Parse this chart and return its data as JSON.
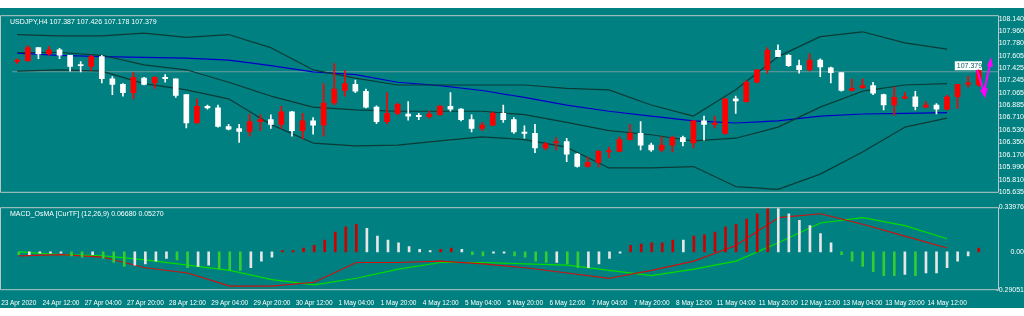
{
  "chart_data": [
    {
      "type": "candlestick",
      "title": "USDJPY,H4 107.387 107.426 107.178 107.379",
      "categories": [
        "23 Apr 2020",
        null,
        null,
        null,
        "24 Apr 12:00",
        null,
        null,
        null,
        "27 Apr 04:00",
        null,
        null,
        null,
        "27 Apr 20:00",
        null,
        null,
        null,
        "28 Apr 12:00",
        null,
        null,
        null,
        "29 Apr 04:00",
        null,
        null,
        null,
        "29 Apr 20:00",
        null,
        null,
        null,
        "30 Apr 12:00",
        null,
        null,
        null,
        "1 May 04:00",
        null,
        null,
        null,
        "1 May 20:00",
        null,
        null,
        null,
        "4 May 12:00",
        null,
        null,
        null,
        "5 May 04:00",
        null,
        null,
        null,
        "5 May 20:00",
        null,
        null,
        null,
        "6 May 12:00",
        null,
        null,
        null,
        "7 May 04:00",
        null,
        null,
        null,
        "7 May 20:00",
        null,
        null,
        null,
        "8 May 12:00",
        null,
        null,
        null,
        "11 May 04:00",
        null,
        null,
        null,
        "11 May 20:00",
        null,
        null,
        null,
        "12 May 12:00",
        null,
        null,
        null,
        "13 May 04:00",
        null,
        null,
        null,
        "13 May 20:00",
        null,
        null,
        null,
        "14 May 12:00",
        null,
        null,
        null
      ],
      "ohlc": [
        [
          107.52,
          107.56,
          107.49,
          107.54
        ],
        [
          107.53,
          107.75,
          107.53,
          107.72
        ],
        [
          107.72,
          107.72,
          107.56,
          107.63
        ],
        [
          107.63,
          107.74,
          107.61,
          107.69
        ],
        [
          107.69,
          107.71,
          107.56,
          107.61
        ],
        [
          107.61,
          107.61,
          107.38,
          107.45
        ],
        [
          107.47,
          107.52,
          107.37,
          107.46
        ],
        [
          107.45,
          107.61,
          107.39,
          107.59
        ],
        [
          107.59,
          107.61,
          107.21,
          107.27
        ],
        [
          107.27,
          107.3,
          107.04,
          107.19
        ],
        [
          107.19,
          107.2,
          107.02,
          107.07
        ],
        [
          107.07,
          107.36,
          106.98,
          107.29
        ],
        [
          107.28,
          107.29,
          107.18,
          107.19
        ],
        [
          107.21,
          107.3,
          107.13,
          107.29
        ],
        [
          107.29,
          107.33,
          107.22,
          107.27
        ],
        [
          107.27,
          107.27,
          107.0,
          107.03
        ],
        [
          107.04,
          107.04,
          106.56,
          106.63
        ],
        [
          106.63,
          106.98,
          106.63,
          106.87
        ],
        [
          106.87,
          106.89,
          106.83,
          106.85
        ],
        [
          106.85,
          106.89,
          106.57,
          106.58
        ],
        [
          106.58,
          106.61,
          106.53,
          106.54
        ],
        [
          106.55,
          106.61,
          106.35,
          106.51
        ],
        [
          106.51,
          106.76,
          106.44,
          106.65
        ],
        [
          106.65,
          106.75,
          106.52,
          106.68
        ],
        [
          106.68,
          106.75,
          106.55,
          106.61
        ],
        [
          106.61,
          106.87,
          106.55,
          106.79
        ],
        [
          106.79,
          106.8,
          106.44,
          106.52
        ],
        [
          106.52,
          106.77,
          106.4,
          106.66
        ],
        [
          106.66,
          106.71,
          106.47,
          106.6
        ],
        [
          106.6,
          107.2,
          106.44,
          106.92
        ],
        [
          106.92,
          107.49,
          106.89,
          107.12
        ],
        [
          107.1,
          107.39,
          107.02,
          107.2
        ],
        [
          107.19,
          107.25,
          107.07,
          107.09
        ],
        [
          107.09,
          107.12,
          106.85,
          106.86
        ],
        [
          106.86,
          106.88,
          106.62,
          106.65
        ],
        [
          106.65,
          107.07,
          106.62,
          106.77
        ],
        [
          106.77,
          106.92,
          106.75,
          106.9
        ],
        [
          106.76,
          106.94,
          106.67,
          106.73
        ],
        [
          106.74,
          106.77,
          106.68,
          106.72
        ],
        [
          106.72,
          106.8,
          106.7,
          106.76
        ],
        [
          106.75,
          106.89,
          106.74,
          106.87
        ],
        [
          106.87,
          107.07,
          106.8,
          106.83
        ],
        [
          106.83,
          106.84,
          106.66,
          106.68
        ],
        [
          106.68,
          106.75,
          106.5,
          106.55
        ],
        [
          106.55,
          106.64,
          106.52,
          106.6
        ],
        [
          106.6,
          106.79,
          106.59,
          106.77
        ],
        [
          106.77,
          106.89,
          106.64,
          106.68
        ],
        [
          106.68,
          106.71,
          106.48,
          106.5
        ],
        [
          106.5,
          106.59,
          106.41,
          106.48
        ],
        [
          106.48,
          106.61,
          106.2,
          106.27
        ],
        [
          106.27,
          106.35,
          106.24,
          106.33
        ],
        [
          106.34,
          106.42,
          106.24,
          106.36
        ],
        [
          106.36,
          106.41,
          106.07,
          106.18
        ],
        [
          106.18,
          106.19,
          105.99,
          106.0
        ],
        [
          106.0,
          106.14,
          105.99,
          106.06
        ],
        [
          106.06,
          106.24,
          105.99,
          106.22
        ],
        [
          106.21,
          106.28,
          106.13,
          106.23
        ],
        [
          106.22,
          106.43,
          106.21,
          106.39
        ],
        [
          106.39,
          106.61,
          106.38,
          106.48
        ],
        [
          106.48,
          106.65,
          106.24,
          106.31
        ],
        [
          106.31,
          106.34,
          106.22,
          106.24
        ],
        [
          106.24,
          106.43,
          106.21,
          106.31
        ],
        [
          106.31,
          106.44,
          106.21,
          106.42
        ],
        [
          106.42,
          106.44,
          106.3,
          106.36
        ],
        [
          106.34,
          106.66,
          106.27,
          106.66
        ],
        [
          106.66,
          106.73,
          106.38,
          106.61
        ],
        [
          106.61,
          106.73,
          106.56,
          106.63
        ],
        [
          106.48,
          106.98,
          106.47,
          106.98
        ],
        [
          106.98,
          107.02,
          106.77,
          106.95
        ],
        [
          106.94,
          107.25,
          106.93,
          107.22
        ],
        [
          107.22,
          107.4,
          107.21,
          107.4
        ],
        [
          107.4,
          107.72,
          107.35,
          107.68
        ],
        [
          107.68,
          107.76,
          107.59,
          107.59
        ],
        [
          107.61,
          107.62,
          107.45,
          107.46
        ],
        [
          107.46,
          107.54,
          107.35,
          107.4
        ],
        [
          107.4,
          107.63,
          107.38,
          107.54
        ],
        [
          107.54,
          107.56,
          107.3,
          107.44
        ],
        [
          107.43,
          107.44,
          107.21,
          107.36
        ],
        [
          107.36,
          107.36,
          107.09,
          107.1
        ],
        [
          107.1,
          107.27,
          107.09,
          107.13
        ],
        [
          107.14,
          107.27,
          107.13,
          107.17
        ],
        [
          107.17,
          107.22,
          107.04,
          107.06
        ],
        [
          107.04,
          107.05,
          106.82,
          106.89
        ],
        [
          106.89,
          107.15,
          106.74,
          107.0
        ],
        [
          106.99,
          107.07,
          106.98,
          107.01
        ],
        [
          107.01,
          107.09,
          106.82,
          106.87
        ],
        [
          106.86,
          106.94,
          106.85,
          106.89
        ],
        [
          106.89,
          106.91,
          106.76,
          106.83
        ],
        [
          106.83,
          107.03,
          106.82,
          107.01
        ],
        [
          107.01,
          107.19,
          106.84,
          107.19
        ],
        [
          107.19,
          107.31,
          107.15,
          107.21
        ],
        [
          107.18,
          107.4,
          107.16,
          107.39
        ]
      ],
      "colors": [
        "#ff0000",
        "#ff0000",
        "#ffffff",
        "#ff0000",
        "#ffffff",
        "#ffffff",
        "#ffffff",
        "#ff0000",
        "#ffffff",
        "#ffffff",
        "#ffffff",
        "#ff0000",
        "#ffffff",
        "#ff0000",
        "#ffffff",
        "#ffffff",
        "#ffffff",
        "#ff0000",
        "#ffffff",
        "#ffffff",
        "#ffffff",
        "#ffffff",
        "#ff0000",
        "#ff0000",
        "#ffffff",
        "#ff0000",
        "#ffffff",
        "#ff0000",
        "#ffffff",
        "#ff0000",
        "#ff0000",
        "#ff0000",
        "#ffffff",
        "#ffffff",
        "#ffffff",
        "#ff0000",
        "#ff0000",
        "#ffffff",
        "#ffffff",
        "#ff0000",
        "#ff0000",
        "#ffffff",
        "#ffffff",
        "#ffffff",
        "#ff0000",
        "#ff0000",
        "#ffffff",
        "#ffffff",
        "#ffffff",
        "#ffffff",
        "#ff0000",
        "#ff0000",
        "#ffffff",
        "#ffffff",
        "#ff0000",
        "#ff0000",
        "#ff0000",
        "#ff0000",
        "#ff0000",
        "#ffffff",
        "#ffffff",
        "#ff0000",
        "#ff0000",
        "#ffffff",
        "#ff0000",
        "#ffffff",
        "#ff0000",
        "#ff0000",
        "#ffffff",
        "#ff0000",
        "#ff0000",
        "#ff0000",
        "#ffffff",
        "#ffffff",
        "#ffffff",
        "#ff0000",
        "#ffffff",
        "#ffffff",
        "#ffffff",
        "#ff0000",
        "#ff0000",
        "#ffffff",
        "#ffffff",
        "#ff0000",
        "#ff0000",
        "#ffffff",
        "#ff0000",
        "#ffffff",
        "#ff0000",
        "#ff0000",
        "#ff0000",
        "#ff0000"
      ],
      "series": [
        {
          "type": "line",
          "color": "#0b3b36",
          "x": [
            "23 Apr 2020",
            "24 Apr 12:00",
            "27 Apr 04:00",
            "27 Apr 20:00",
            "28 Apr 12:00",
            "29 Apr 04:00",
            "29 Apr 20:00",
            "30 Apr 12:00",
            "1 May 04:00",
            "1 May 20:00",
            "4 May 12:00",
            "5 May 04:00",
            "5 May 20:00",
            "6 May 12:00",
            "7 May 04:00",
            "7 May 20:00",
            "8 May 12:00",
            "11 May 04:00",
            "11 May 20:00",
            "12 May 12:00",
            "13 May 04:00",
            "13 May 20:00",
            "14 May 12:00"
          ],
          "values": [
            107.91,
            107.89,
            107.89,
            107.93,
            107.87,
            107.91,
            107.72,
            107.4,
            107.28,
            107.18,
            107.18,
            107.18,
            107.18,
            107.13,
            107.11,
            106.89,
            106.73,
            107.11,
            107.59,
            107.88,
            107.95,
            107.79,
            107.7
          ]
        },
        {
          "type": "line",
          "color": "#0b3b36",
          "x": [
            "23 Apr 2020",
            "24 Apr 12:00",
            "27 Apr 04:00",
            "27 Apr 20:00",
            "28 Apr 12:00",
            "29 Apr 04:00",
            "29 Apr 20:00",
            "30 Apr 12:00",
            "1 May 04:00",
            "1 May 20:00",
            "4 May 12:00",
            "5 May 04:00",
            "5 May 20:00",
            "6 May 12:00",
            "7 May 04:00",
            "7 May 20:00",
            "8 May 12:00",
            "11 May 04:00",
            "11 May 20:00",
            "12 May 12:00",
            "13 May 04:00",
            "13 May 20:00",
            "14 May 12:00"
          ],
          "values": [
            107.65,
            107.65,
            107.61,
            107.47,
            107.4,
            107.22,
            107.02,
            106.86,
            106.82,
            106.8,
            106.8,
            106.8,
            106.75,
            106.64,
            106.52,
            106.46,
            106.37,
            106.41,
            106.57,
            106.86,
            107.09,
            107.18,
            107.2
          ]
        },
        {
          "type": "line",
          "color": "#0b3b36",
          "x": [
            "23 Apr 2020",
            "24 Apr 12:00",
            "27 Apr 04:00",
            "27 Apr 20:00",
            "28 Apr 12:00",
            "29 Apr 04:00",
            "29 Apr 20:00",
            "30 Apr 12:00",
            "1 May 04:00",
            "1 May 20:00",
            "4 May 12:00",
            "5 May 04:00",
            "5 May 20:00",
            "6 May 12:00",
            "7 May 04:00",
            "7 May 20:00",
            "8 May 12:00",
            "11 May 04:00",
            "11 May 20:00",
            "12 May 12:00",
            "13 May 04:00",
            "13 May 20:00",
            "14 May 12:00"
          ],
          "values": [
            107.38,
            107.4,
            107.38,
            107.2,
            107.11,
            106.98,
            106.61,
            106.34,
            106.3,
            106.31,
            106.37,
            106.43,
            106.39,
            106.28,
            105.98,
            105.98,
            106.0,
            105.71,
            105.67,
            105.89,
            106.21,
            106.57,
            106.7
          ]
        },
        {
          "type": "line",
          "color": "#0000c8",
          "x": [
            "23 Apr 2020",
            "24 Apr 12:00",
            "27 Apr 04:00",
            "27 Apr 20:00",
            "28 Apr 12:00",
            "29 Apr 04:00",
            "29 Apr 20:00",
            "30 Apr 12:00",
            "1 May 04:00",
            "1 May 20:00",
            "4 May 12:00",
            "5 May 04:00",
            "5 May 20:00",
            "6 May 12:00",
            "7 May 04:00",
            "7 May 20:00",
            "8 May 12:00",
            "11 May 04:00",
            "11 May 20:00",
            "12 May 12:00",
            "13 May 04:00",
            "13 May 20:00",
            "14 May 12:00"
          ],
          "values": [
            107.64,
            107.61,
            107.59,
            107.58,
            107.57,
            107.54,
            107.46,
            107.37,
            107.33,
            107.22,
            107.17,
            107.1,
            107.0,
            106.89,
            106.8,
            106.73,
            106.66,
            106.63,
            106.66,
            106.73,
            106.76,
            106.77,
            106.78
          ]
        }
      ],
      "ylim": [
        105.62,
        108.19
      ],
      "yticks": [
        {
          "value": 108.14,
          "label": "108.140"
        },
        {
          "value": 107.96,
          "label": "107.960"
        },
        {
          "value": 107.78,
          "label": "107.780"
        },
        {
          "value": 107.605,
          "label": "107.605"
        },
        {
          "value": 107.425,
          "label": "107.425"
        },
        {
          "value": 107.245,
          "label": "107.245"
        },
        {
          "value": 107.065,
          "label": "107.065"
        },
        {
          "value": 106.885,
          "label": "106.885"
        },
        {
          "value": 106.71,
          "label": "106.710"
        },
        {
          "value": 106.53,
          "label": "106.530"
        },
        {
          "value": 106.35,
          "label": "106.350"
        },
        {
          "value": 106.17,
          "label": "106.170"
        },
        {
          "value": 105.99,
          "label": "105.990"
        },
        {
          "value": 105.81,
          "label": "105.810"
        },
        {
          "value": 105.635,
          "label": "105.635"
        }
      ],
      "ref_lines": [
        {
          "axis": "y",
          "value": 107.379,
          "label": "107.379",
          "color": "#6a9e9e"
        }
      ],
      "tick_labels": "y"
    },
    {
      "type": "bar",
      "title": "MACD_OsMA [CurTF] (12,26,9) 0.06680 0.05270",
      "categories": [
        "23 Apr 2020",
        null,
        null,
        null,
        "24 Apr 12:00",
        null,
        null,
        null,
        "27 Apr 04:00",
        null,
        null,
        null,
        "27 Apr 20:00",
        null,
        null,
        null,
        "28 Apr 12:00",
        null,
        null,
        null,
        "29 Apr 04:00",
        null,
        null,
        null,
        "29 Apr 20:00",
        null,
        null,
        null,
        "30 Apr 12:00",
        null,
        null,
        null,
        "1 May 04:00",
        null,
        null,
        null,
        "1 May 20:00",
        null,
        null,
        null,
        "4 May 12:00",
        null,
        null,
        null,
        "5 May 04:00",
        null,
        null,
        null,
        "5 May 20:00",
        null,
        null,
        null,
        "6 May 12:00",
        null,
        null,
        null,
        "7 May 04:00",
        null,
        null,
        null,
        "7 May 20:00",
        null,
        null,
        null,
        "8 May 12:00",
        null,
        null,
        null,
        "11 May 04:00",
        null,
        null,
        null,
        "11 May 20:00",
        null,
        null,
        null,
        "12 May 12:00",
        null,
        null,
        null,
        "13 May 04:00",
        null,
        null,
        null,
        "13 May 20:00",
        null,
        null,
        null,
        "14 May 12:00",
        null,
        null,
        null
      ],
      "series": [
        {
          "type": "bar",
          "values": [
            -0.02,
            -0.02,
            -0.01,
            -0.01,
            -0.01,
            -0.03,
            -0.04,
            -0.02,
            -0.05,
            -0.08,
            -0.11,
            -0.1,
            -0.09,
            -0.07,
            -0.05,
            -0.06,
            -0.12,
            -0.11,
            -0.1,
            -0.13,
            -0.14,
            -0.14,
            -0.12,
            -0.07,
            -0.04,
            0.01,
            0.01,
            0.03,
            0.05,
            0.09,
            0.15,
            0.19,
            0.21,
            0.18,
            0.12,
            0.09,
            0.07,
            0.04,
            0.02,
            0.01,
            0.02,
            0.03,
            0.02,
            -0.02,
            -0.03,
            -0.01,
            -0.01,
            -0.03,
            -0.04,
            -0.07,
            -0.08,
            -0.08,
            -0.09,
            -0.12,
            -0.12,
            -0.09,
            -0.05,
            -0.01,
            0.05,
            0.06,
            0.07,
            0.07,
            0.09,
            0.09,
            0.12,
            0.13,
            0.15,
            0.19,
            0.21,
            0.25,
            0.29,
            0.33,
            0.33,
            0.29,
            0.24,
            0.2,
            0.14,
            0.07,
            -0.02,
            -0.07,
            -0.11,
            -0.15,
            -0.18,
            -0.18,
            -0.17,
            -0.18,
            -0.16,
            -0.16,
            -0.12,
            -0.07,
            -0.03,
            0.03
          ],
          "colors": [
            "#33cc33",
            "#e6e6e6",
            "#e6e6e6",
            "#e6e6e6",
            "#e6e6e6",
            "#33cc33",
            "#33cc33",
            "#e6e6e6",
            "#33cc33",
            "#33cc33",
            "#33cc33",
            "#e6e6e6",
            "#e6e6e6",
            "#e6e6e6",
            "#e6e6e6",
            "#33cc33",
            "#33cc33",
            "#e6e6e6",
            "#e6e6e6",
            "#33cc33",
            "#33cc33",
            "#33cc33",
            "#e6e6e6",
            "#e6e6e6",
            "#e6e6e6",
            "#cc0000",
            "#cc0000",
            "#cc0000",
            "#cc0000",
            "#cc0000",
            "#cc0000",
            "#cc0000",
            "#cc0000",
            "#e6e6e6",
            "#e6e6e6",
            "#e6e6e6",
            "#e6e6e6",
            "#e6e6e6",
            "#e6e6e6",
            "#e6e6e6",
            "#cc0000",
            "#cc0000",
            "#e6e6e6",
            "#33cc33",
            "#33cc33",
            "#e6e6e6",
            "#e6e6e6",
            "#33cc33",
            "#33cc33",
            "#33cc33",
            "#33cc33",
            "#e6e6e6",
            "#33cc33",
            "#33cc33",
            "#e6e6e6",
            "#e6e6e6",
            "#e6e6e6",
            "#e6e6e6",
            "#cc0000",
            "#cc0000",
            "#cc0000",
            "#cc0000",
            "#cc0000",
            "#e6e6e6",
            "#cc0000",
            "#cc0000",
            "#cc0000",
            "#cc0000",
            "#cc0000",
            "#cc0000",
            "#cc0000",
            "#cc0000",
            "#e6e6e6",
            "#e6e6e6",
            "#e6e6e6",
            "#e6e6e6",
            "#e6e6e6",
            "#e6e6e6",
            "#33cc33",
            "#33cc33",
            "#33cc33",
            "#33cc33",
            "#33cc33",
            "#33cc33",
            "#e6e6e6",
            "#33cc33",
            "#e6e6e6",
            "#e6e6e6",
            "#e6e6e6",
            "#e6e6e6",
            "#e6e6e6",
            "#cc0000"
          ]
        },
        {
          "type": "line",
          "color": "#cc1111",
          "x": [
            "23 Apr 2020",
            "24 Apr 12:00",
            "27 Apr 04:00",
            "27 Apr 20:00",
            "28 Apr 12:00",
            "29 Apr 04:00",
            "29 Apr 20:00",
            "30 Apr 12:00",
            "1 May 04:00",
            "1 May 20:00",
            "4 May 12:00",
            "5 May 04:00",
            "5 May 20:00",
            "6 May 12:00",
            "7 May 04:00",
            "7 May 20:00",
            "8 May 12:00",
            "11 May 04:00",
            "11 May 20:00",
            "12 May 12:00",
            "13 May 04:00",
            "13 May 20:00",
            "14 May 12:00"
          ],
          "values": [
            -0.03,
            -0.02,
            -0.04,
            -0.12,
            -0.16,
            -0.26,
            -0.26,
            -0.23,
            -0.08,
            -0.08,
            -0.07,
            -0.09,
            -0.12,
            -0.16,
            -0.2,
            -0.14,
            -0.07,
            0.05,
            0.26,
            0.29,
            0.21,
            0.12,
            0.03
          ]
        },
        {
          "type": "line",
          "color": "#00dd00",
          "x": [
            "23 Apr 2020",
            "24 Apr 12:00",
            "27 Apr 04:00",
            "27 Apr 20:00",
            "28 Apr 12:00",
            "29 Apr 04:00",
            "29 Apr 20:00",
            "30 Apr 12:00",
            "1 May 04:00",
            "1 May 20:00",
            "4 May 12:00",
            "5 May 04:00",
            "5 May 20:00",
            "6 May 12:00",
            "7 May 04:00",
            "7 May 20:00",
            "8 May 12:00",
            "11 May 04:00",
            "11 May 20:00",
            "12 May 12:00",
            "13 May 04:00",
            "13 May 20:00",
            "14 May 12:00"
          ],
          "values": [
            0.0,
            -0.02,
            -0.03,
            -0.06,
            -0.1,
            -0.14,
            -0.21,
            -0.25,
            -0.2,
            -0.13,
            -0.08,
            -0.08,
            -0.09,
            -0.1,
            -0.14,
            -0.18,
            -0.13,
            -0.07,
            0.07,
            0.22,
            0.26,
            0.2,
            0.1
          ]
        }
      ],
      "ylim": [
        -0.29051,
        0.33976
      ],
      "yticks": [
        0.33976,
        {
          "value": 0,
          "label": "0.00"
        },
        -0.29051
      ]
    }
  ]
}
